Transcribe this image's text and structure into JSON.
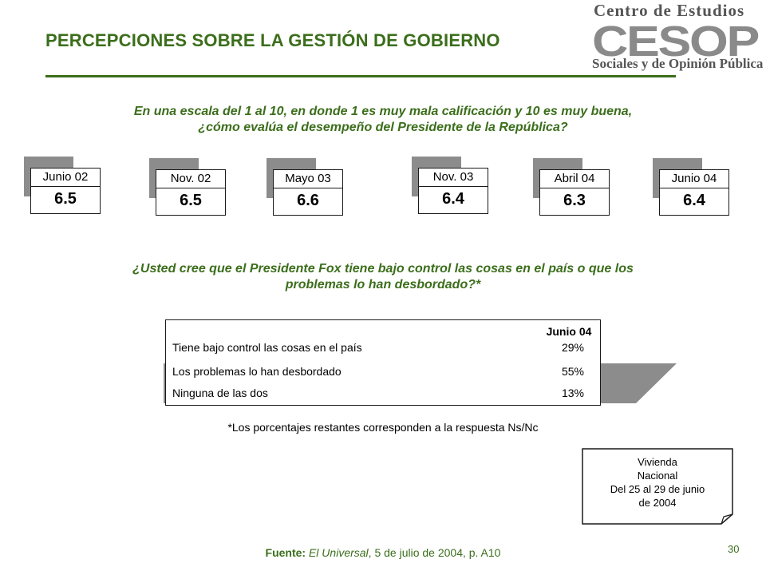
{
  "header": {
    "title": "PERCEPCIONES SOBRE LA GESTIÓN DE GOBIERNO",
    "logo_top": "Centro de Estudios",
    "logo_mark": "CESOP",
    "logo_bottom": "Sociales y de Opinión Pública"
  },
  "question1": {
    "line1": "En una escala del 1 al 10, en donde 1 es muy mala calificación y 10 es muy buena,",
    "line2": "¿cómo evalúa el desempeño del Presidente de la República?"
  },
  "scores": [
    {
      "label": "Junio 02",
      "value": "6.5"
    },
    {
      "label": "Nov. 02",
      "value": "6.5"
    },
    {
      "label": "Mayo 03",
      "value": "6.6"
    },
    {
      "label": "Nov. 03",
      "value": "6.4"
    },
    {
      "label": "Abril 04",
      "value": "6.3"
    },
    {
      "label": "Junio 04",
      "value": "6.4"
    }
  ],
  "question2": {
    "line1": "¿Usted cree que el Presidente Fox tiene bajo control las cosas en el país o que los",
    "line2": "problemas lo han desbordado?*"
  },
  "table": {
    "column": "Junio 04",
    "rows": [
      {
        "label": "Tiene bajo control las cosas en el país",
        "value": "29%"
      },
      {
        "label": "Los problemas lo han desbordado",
        "value": "55%"
      },
      {
        "label": "Ninguna de las dos",
        "value": "13%"
      }
    ]
  },
  "footnote": "*Los porcentajes restantes corresponden a la respuesta Ns/Nc",
  "survey_note": {
    "line1": "Vivienda",
    "line2": "Nacional",
    "line3": "Del 25 al 29 de junio",
    "line4": "de 2004"
  },
  "source": {
    "prefix": "Fuente:",
    "publication": "El Universal",
    "rest": ", 5 de julio de 2004, p. A10"
  },
  "page_number": "30",
  "colors": {
    "accent_green": "#3b6e1b",
    "shadow_gray": "#8c8c8c",
    "logo_gray": "#555555"
  }
}
